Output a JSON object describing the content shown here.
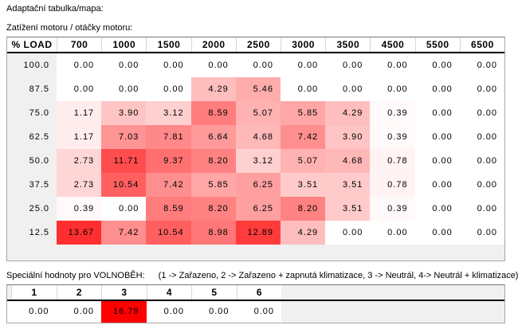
{
  "page": {
    "title_label": "Adaptační tabulka/mapa:",
    "axis_label": "Zatížení motoru / otáčky motoru:"
  },
  "adaptation_table": {
    "corner_header": "% LOAD",
    "rpm_headers": [
      "700",
      "1000",
      "1500",
      "2000",
      "2500",
      "3000",
      "3500",
      "4500",
      "5500",
      "6500"
    ],
    "load_rows": [
      {
        "load": "100.0",
        "values": [
          0.0,
          0.0,
          0.0,
          0.0,
          0.0,
          0.0,
          0.0,
          0.0,
          0.0,
          0.0
        ]
      },
      {
        "load": "87.5",
        "values": [
          0.0,
          0.0,
          0.0,
          4.29,
          5.46,
          0.0,
          0.0,
          0.0,
          0.0,
          0.0
        ]
      },
      {
        "load": "75.0",
        "values": [
          1.17,
          3.9,
          3.12,
          8.59,
          5.07,
          5.85,
          4.29,
          0.39,
          0.0,
          0.0
        ]
      },
      {
        "load": "62.5",
        "values": [
          1.17,
          7.03,
          7.81,
          6.64,
          4.68,
          7.42,
          3.9,
          0.39,
          0.0,
          0.0
        ]
      },
      {
        "load": "50.0",
        "values": [
          2.73,
          11.71,
          9.37,
          8.2,
          3.12,
          5.07,
          4.68,
          0.78,
          0.0,
          0.0
        ]
      },
      {
        "load": "37.5",
        "values": [
          2.73,
          10.54,
          7.42,
          5.85,
          6.25,
          3.51,
          3.51,
          0.78,
          0.0,
          0.0
        ]
      },
      {
        "load": "25.0",
        "values": [
          0.39,
          0.0,
          8.59,
          8.2,
          6.25,
          8.2,
          3.51,
          0.39,
          0.0,
          0.0
        ]
      },
      {
        "load": "12.5",
        "values": [
          13.67,
          7.42,
          10.54,
          8.98,
          12.89,
          4.29,
          0.0,
          0.0,
          0.0,
          0.0
        ]
      }
    ],
    "value_decimals": 2,
    "heat": {
      "min_color": "#ffffff",
      "max_color": "#ff0000",
      "max_value": 16.79
    }
  },
  "idle_section": {
    "label": "Speciální hodnoty pro VOLNOBĚH:",
    "legend": "(1 -> Zařazeno, 2 -> Zařazeno + zapnutá klimatizace, 3 -> Neutrál, 4-> Neutrál + klimatizace)",
    "headers": [
      "1",
      "2",
      "3",
      "4",
      "5",
      "6"
    ],
    "values": [
      0.0,
      0.0,
      16.79,
      0.0,
      0.0,
      0.0
    ]
  }
}
